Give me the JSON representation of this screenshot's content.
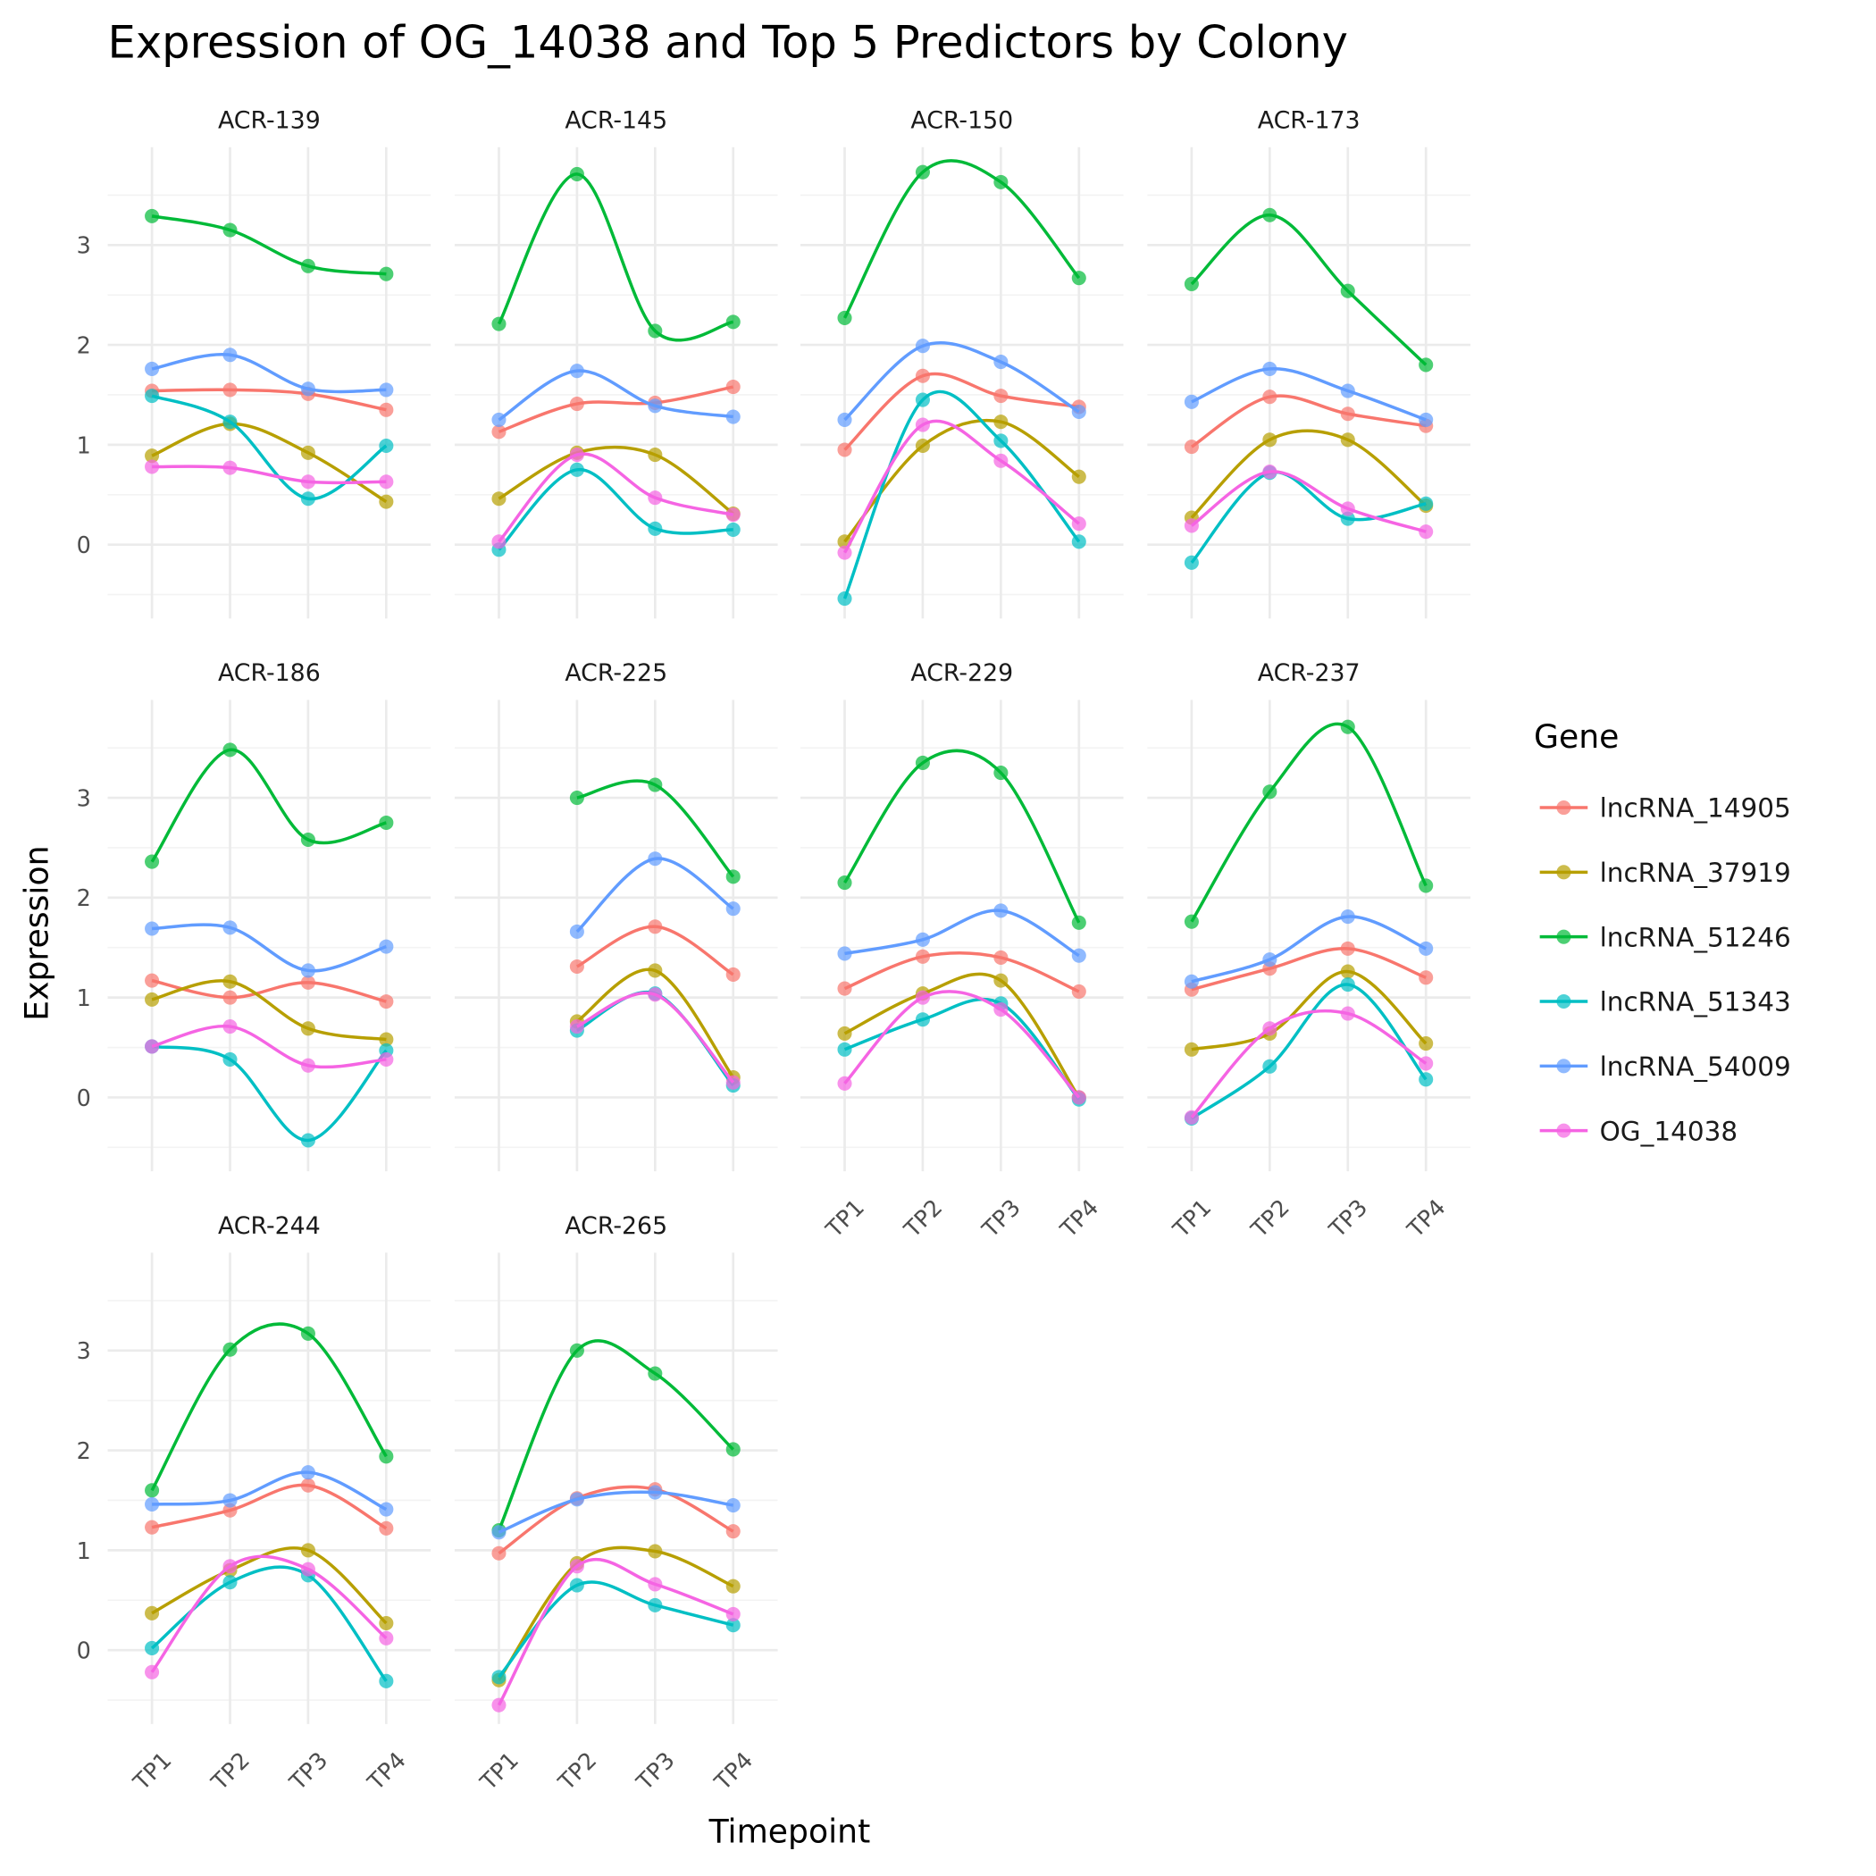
{
  "chart_data": {
    "type": "line",
    "title": "Expression of OG_14038 and Top 5 Predictors by Colony",
    "xlabel": "Timepoint",
    "ylabel": "Expression",
    "categories": [
      "TP1",
      "TP2",
      "TP3",
      "TP4"
    ],
    "y_ticks": [
      0,
      1,
      2,
      3
    ],
    "ylim": [
      -0.74,
      3.98
    ],
    "grid": true,
    "legend": {
      "title": "Gene",
      "placement": "right"
    },
    "genes": [
      {
        "name": "lncRNA_14905",
        "color": "#F8766D"
      },
      {
        "name": "lncRNA_37919",
        "color": "#B79F00"
      },
      {
        "name": "lncRNA_51246",
        "color": "#00BA38"
      },
      {
        "name": "lncRNA_51343",
        "color": "#00BFC4"
      },
      {
        "name": "lncRNA_54009",
        "color": "#619CFF"
      },
      {
        "name": "OG_14038",
        "color": "#F564E3"
      }
    ],
    "panels": [
      {
        "colony": "ACR-139",
        "values": {
          "lncRNA_14905": [
            1.54,
            1.55,
            1.51,
            1.35
          ],
          "lncRNA_37919": [
            0.89,
            1.21,
            0.92,
            0.43
          ],
          "lncRNA_51246": [
            3.29,
            3.15,
            2.79,
            2.71
          ],
          "lncRNA_51343": [
            1.49,
            1.23,
            0.46,
            0.99
          ],
          "lncRNA_54009": [
            1.76,
            1.9,
            1.56,
            1.55
          ],
          "OG_14038": [
            0.78,
            0.77,
            0.63,
            0.63
          ]
        }
      },
      {
        "colony": "ACR-145",
        "values": {
          "lncRNA_14905": [
            1.13,
            1.41,
            1.42,
            1.58
          ],
          "lncRNA_37919": [
            0.46,
            0.92,
            0.9,
            0.31
          ],
          "lncRNA_51246": [
            2.21,
            3.71,
            2.14,
            2.23
          ],
          "lncRNA_51343": [
            -0.05,
            0.75,
            0.16,
            0.15
          ],
          "lncRNA_54009": [
            1.25,
            1.74,
            1.39,
            1.28
          ],
          "OG_14038": [
            0.03,
            0.9,
            0.47,
            0.3
          ]
        }
      },
      {
        "colony": "ACR-150",
        "values": {
          "lncRNA_14905": [
            0.95,
            1.69,
            1.49,
            1.38
          ],
          "lncRNA_37919": [
            0.03,
            0.99,
            1.23,
            0.68
          ],
          "lncRNA_51246": [
            2.27,
            3.73,
            3.63,
            2.67
          ],
          "lncRNA_51343": [
            -0.54,
            1.45,
            1.04,
            0.03
          ],
          "lncRNA_54009": [
            1.25,
            1.99,
            1.83,
            1.33
          ],
          "OG_14038": [
            -0.08,
            1.2,
            0.84,
            0.21
          ]
        }
      },
      {
        "colony": "ACR-173",
        "values": {
          "lncRNA_14905": [
            0.98,
            1.48,
            1.31,
            1.19
          ],
          "lncRNA_37919": [
            0.27,
            1.05,
            1.05,
            0.39
          ],
          "lncRNA_51246": [
            2.61,
            3.3,
            2.54,
            1.8
          ],
          "lncRNA_51343": [
            -0.18,
            0.72,
            0.26,
            0.41
          ],
          "lncRNA_54009": [
            1.43,
            1.76,
            1.54,
            1.25
          ],
          "OG_14038": [
            0.19,
            0.73,
            0.36,
            0.13
          ]
        }
      },
      {
        "colony": "ACR-186",
        "values": {
          "lncRNA_14905": [
            1.17,
            1.0,
            1.15,
            0.96
          ],
          "lncRNA_37919": [
            0.98,
            1.16,
            0.69,
            0.58
          ],
          "lncRNA_51246": [
            2.36,
            3.48,
            2.58,
            2.75
          ],
          "lncRNA_51343": [
            0.51,
            0.38,
            -0.43,
            0.47
          ],
          "lncRNA_54009": [
            1.69,
            1.7,
            1.27,
            1.51
          ],
          "OG_14038": [
            0.51,
            0.71,
            0.32,
            0.38
          ]
        }
      },
      {
        "colony": "ACR-225",
        "values": {
          "lncRNA_14905": [
            null,
            1.31,
            1.71,
            1.23
          ],
          "lncRNA_37919": [
            null,
            0.76,
            1.27,
            0.2
          ],
          "lncRNA_51246": [
            null,
            3.0,
            3.13,
            2.21
          ],
          "lncRNA_51343": [
            null,
            0.67,
            1.04,
            0.12
          ],
          "lncRNA_54009": [
            null,
            1.66,
            2.39,
            1.89
          ],
          "OG_14038": [
            null,
            0.71,
            1.03,
            0.15
          ]
        }
      },
      {
        "colony": "ACR-229",
        "values": {
          "lncRNA_14905": [
            1.09,
            1.41,
            1.4,
            1.06
          ],
          "lncRNA_37919": [
            0.64,
            1.04,
            1.17,
            0.0
          ],
          "lncRNA_51246": [
            2.15,
            3.35,
            3.25,
            1.75
          ],
          "lncRNA_51343": [
            0.48,
            0.78,
            0.94,
            -0.02
          ],
          "lncRNA_54009": [
            1.44,
            1.58,
            1.87,
            1.42
          ],
          "OG_14038": [
            0.14,
            1.0,
            0.88,
            0.0
          ]
        }
      },
      {
        "colony": "ACR-237",
        "values": {
          "lncRNA_14905": [
            1.08,
            1.29,
            1.49,
            1.2
          ],
          "lncRNA_37919": [
            0.48,
            0.64,
            1.26,
            0.54
          ],
          "lncRNA_51246": [
            1.76,
            3.06,
            3.71,
            2.12
          ],
          "lncRNA_51343": [
            -0.21,
            0.31,
            1.13,
            0.18
          ],
          "lncRNA_54009": [
            1.16,
            1.38,
            1.81,
            1.49
          ],
          "OG_14038": [
            -0.2,
            0.69,
            0.84,
            0.34
          ]
        }
      },
      {
        "colony": "ACR-244",
        "values": {
          "lncRNA_14905": [
            1.23,
            1.4,
            1.65,
            1.22
          ],
          "lncRNA_37919": [
            0.37,
            0.8,
            1.0,
            0.27
          ],
          "lncRNA_51246": [
            1.6,
            3.01,
            3.17,
            1.94
          ],
          "lncRNA_51343": [
            0.02,
            0.68,
            0.75,
            -0.31
          ],
          "lncRNA_54009": [
            1.46,
            1.5,
            1.78,
            1.41
          ],
          "OG_14038": [
            -0.22,
            0.84,
            0.81,
            0.12
          ]
        }
      },
      {
        "colony": "ACR-265",
        "values": {
          "lncRNA_14905": [
            0.97,
            1.52,
            1.61,
            1.19
          ],
          "lncRNA_37919": [
            -0.3,
            0.87,
            0.99,
            0.64
          ],
          "lncRNA_51246": [
            1.2,
            3.0,
            2.77,
            2.01
          ],
          "lncRNA_51343": [
            -0.27,
            0.65,
            0.45,
            0.25
          ],
          "lncRNA_54009": [
            1.18,
            1.51,
            1.58,
            1.45
          ],
          "OG_14038": [
            -0.55,
            0.84,
            0.66,
            0.36
          ]
        }
      }
    ]
  }
}
